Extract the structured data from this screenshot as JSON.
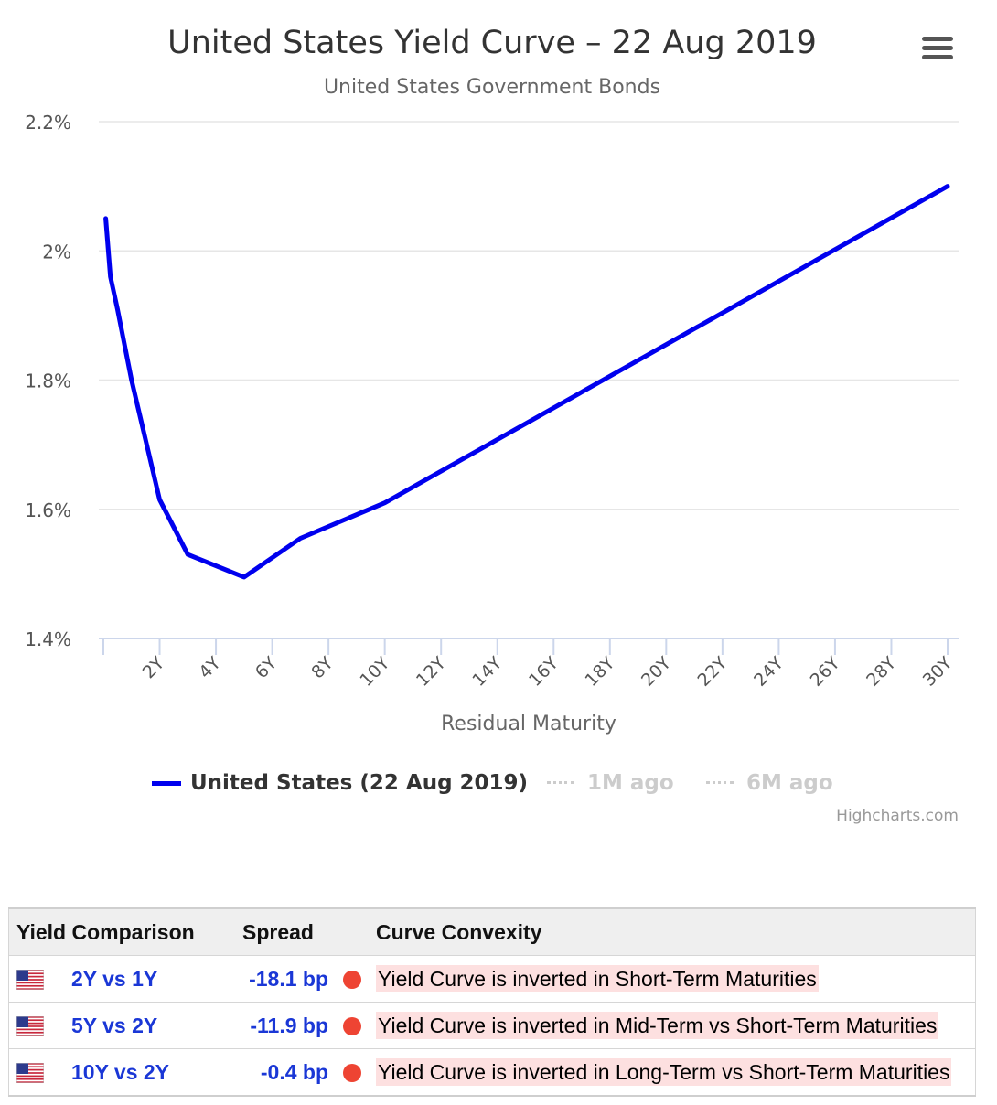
{
  "chart": {
    "title": "United States Yield Curve – 22 Aug 2019",
    "subtitle": "United States Government Bonds",
    "credits": "Highcharts.com"
  },
  "legend": {
    "items": [
      {
        "label": "United States (22 Aug 2019)",
        "color": "#0000ee",
        "active": true
      },
      {
        "label": "1M ago",
        "color": "#cccccc",
        "active": false
      },
      {
        "label": "6M ago",
        "color": "#cccccc",
        "active": false
      }
    ]
  },
  "chart_data": {
    "type": "line",
    "title": "United States Yield Curve – 22 Aug 2019",
    "subtitle": "United States Government Bonds",
    "xlabel": "Residual Maturity",
    "ylabel": "",
    "x_unit": "years",
    "xlim": [
      0,
      30
    ],
    "ylim": [
      1.4,
      2.2
    ],
    "y_ticks": [
      "1.4%",
      "1.6%",
      "1.8%",
      "2%",
      "2.2%"
    ],
    "y_tick_values": [
      1.4,
      1.6,
      1.8,
      2.0,
      2.2
    ],
    "x_ticks": [
      "2Y",
      "4Y",
      "6Y",
      "8Y",
      "10Y",
      "12Y",
      "14Y",
      "16Y",
      "18Y",
      "20Y",
      "22Y",
      "24Y",
      "26Y",
      "28Y",
      "30Y"
    ],
    "x_tick_values": [
      2,
      4,
      6,
      8,
      10,
      12,
      14,
      16,
      18,
      20,
      22,
      24,
      26,
      28,
      30
    ],
    "grid": true,
    "series": [
      {
        "name": "United States (22 Aug 2019)",
        "color": "#0000ee",
        "x": [
          0.083,
          0.25,
          0.5,
          1,
          2,
          3,
          5,
          7,
          10,
          30
        ],
        "y": [
          2.05,
          1.96,
          1.91,
          1.8,
          1.615,
          1.53,
          1.495,
          1.555,
          1.61,
          2.1
        ]
      }
    ]
  },
  "table": {
    "headers": {
      "comparison": "Yield Comparison",
      "spread": "Spread",
      "convexity": "Curve Convexity"
    },
    "rows": [
      {
        "comparison": "2Y vs 1Y",
        "spread": "-18.1 bp",
        "convexity": "Yield Curve is inverted in Short-Term Maturities",
        "status_color": "#ee4433",
        "flag": "us-flag-icon"
      },
      {
        "comparison": "5Y vs 2Y",
        "spread": "-11.9 bp",
        "convexity": "Yield Curve is inverted in Mid-Term vs Short-Term Maturities",
        "status_color": "#ee4433",
        "flag": "us-flag-icon"
      },
      {
        "comparison": "10Y vs 2Y",
        "spread": "-0.4 bp",
        "convexity": "Yield Curve is inverted in Long-Term vs Short-Term Maturities",
        "status_color": "#ee4433",
        "flag": "us-flag-icon"
      }
    ]
  }
}
